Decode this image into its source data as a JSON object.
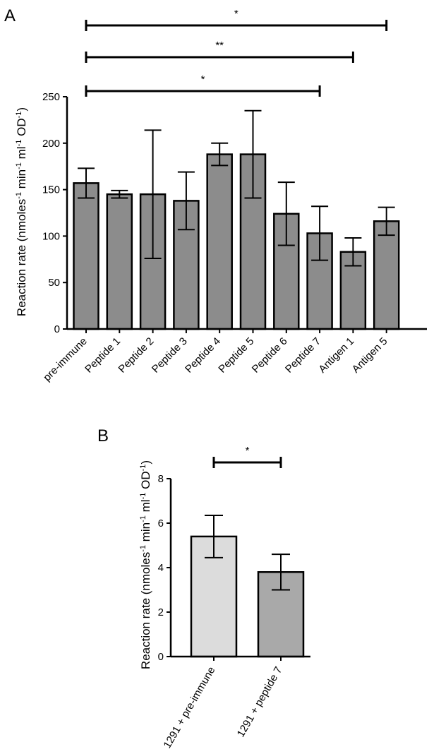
{
  "chart_data": [
    {
      "panel": "A",
      "type": "bar",
      "title": "",
      "xlabel": "",
      "ylabel": "Reaction rate (nmoles-1 min-1 ml-1 OD-1)",
      "ylabel_parts": [
        {
          "text": "Reaction rate (nmoles",
          "sup": false
        },
        {
          "text": "-1",
          "sup": true
        },
        {
          "text": " min",
          "sup": false
        },
        {
          "text": "-1",
          "sup": true
        },
        {
          "text": " ml",
          "sup": false
        },
        {
          "text": "-1",
          "sup": true
        },
        {
          "text": " OD",
          "sup": false
        },
        {
          "text": "-1",
          "sup": true
        },
        {
          "text": ")",
          "sup": false
        }
      ],
      "ylim": [
        0,
        250
      ],
      "yticks": [
        0,
        50,
        100,
        150,
        200,
        250
      ],
      "categories": [
        "pre-immune",
        "Peptide 1",
        "Peptide 2",
        "Peptide 3",
        "Peptide 4",
        "Peptide 5",
        "Peptide 6",
        "Peptide 7",
        "Antigen 1",
        "Antigen 5"
      ],
      "values": [
        157,
        145,
        145,
        138,
        188,
        188,
        124,
        103,
        83,
        116
      ],
      "error": [
        16,
        4,
        69,
        31,
        12,
        47,
        34,
        29,
        15,
        15
      ],
      "bar_color": "#8c8c8c",
      "grid": false,
      "significance": [
        {
          "from": "pre-immune",
          "to": "Antigen 5",
          "label": "*"
        },
        {
          "from": "pre-immune",
          "to": "Antigen 1",
          "label": "**"
        },
        {
          "from": "pre-immune",
          "to": "Peptide 7",
          "label": "*"
        }
      ]
    },
    {
      "panel": "B",
      "type": "bar",
      "title": "",
      "xlabel": "",
      "ylabel": "Reaction rate (nmoles-1 min-1 ml-1 OD-1)",
      "ylabel_parts": [
        {
          "text": "Reaction rate (nmoles",
          "sup": false
        },
        {
          "text": "-1",
          "sup": true
        },
        {
          "text": " min",
          "sup": false
        },
        {
          "text": "-1",
          "sup": true
        },
        {
          "text": " ml",
          "sup": false
        },
        {
          "text": "-1",
          "sup": true
        },
        {
          "text": " OD",
          "sup": false
        },
        {
          "text": "-1",
          "sup": true
        },
        {
          "text": ")",
          "sup": false
        }
      ],
      "ylim": [
        0,
        8
      ],
      "yticks": [
        0,
        2,
        4,
        6,
        8
      ],
      "categories": [
        "1291 + pre-immune",
        "1291 + peptide 7"
      ],
      "values": [
        5.4,
        3.8
      ],
      "error": [
        0.95,
        0.8
      ],
      "bar_colors": [
        "#dcdcdc",
        "#a9a9a9"
      ],
      "grid": false,
      "significance": [
        {
          "from": "1291 + pre-immune",
          "to": "1291 + peptide 7",
          "label": "*"
        }
      ]
    }
  ]
}
